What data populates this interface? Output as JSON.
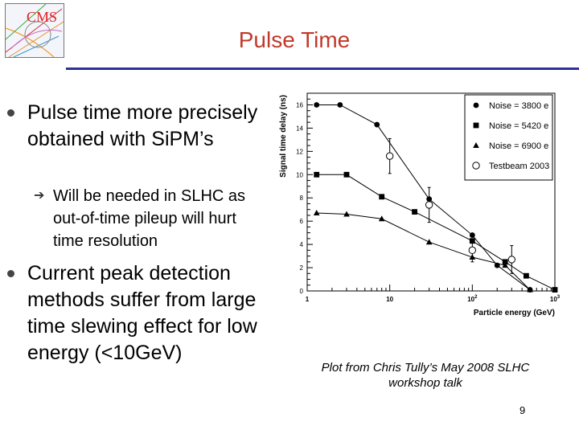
{
  "slide": {
    "title": "Pulse Time",
    "logo_text": "CMS",
    "bullets": [
      {
        "text": "Pulse time more precisely obtained with SiPM’s"
      },
      {
        "text": "Current peak detection methods suffer from large time slewing effect for low energy (<10GeV)"
      }
    ],
    "sub_bullet": "Will be needed in SLHC as out-of-time pileup will hurt time resolution",
    "caption": "Plot from Chris Tully’s May 2008 SLHC workshop talk",
    "page_number": "9"
  },
  "colors": {
    "title": "#c0392b",
    "rule": "#2f2f9a",
    "data": "#000000"
  },
  "chart_data": {
    "type": "line",
    "xscale": "log",
    "xlim": [
      1,
      1000
    ],
    "ylim": [
      0,
      17
    ],
    "xlabel": "Particle energy (GeV)",
    "ylabel": "Signal time delay (ns)",
    "y_ticks": [
      "0",
      "2",
      "4",
      "6",
      "8",
      "10",
      "12",
      "14",
      "16"
    ],
    "x_ticks": [
      {
        "base": "1",
        "exp": ""
      },
      {
        "base": "10",
        "exp": ""
      },
      {
        "base": "10",
        "exp": "2"
      },
      {
        "base": "10",
        "exp": "3"
      }
    ],
    "legend_position": "top-right",
    "series": [
      {
        "name": "Noise = 3800 e",
        "marker": "circle",
        "line": true,
        "points": [
          [
            1.3,
            16.0
          ],
          [
            2.5,
            16.0
          ],
          [
            7,
            14.3
          ],
          [
            30,
            7.9
          ],
          [
            100,
            4.8
          ],
          [
            200,
            2.2
          ],
          [
            500,
            0.1
          ]
        ]
      },
      {
        "name": "Noise = 5420 e",
        "marker": "square",
        "line": true,
        "points": [
          [
            1.3,
            10.0
          ],
          [
            3,
            10.0
          ],
          [
            8,
            8.1
          ],
          [
            20,
            6.8
          ],
          [
            100,
            4.3
          ],
          [
            250,
            2.5
          ],
          [
            450,
            1.3
          ],
          [
            1000,
            0.1
          ]
        ]
      },
      {
        "name": "Noise = 6900 e",
        "marker": "triangle",
        "line": true,
        "points": [
          [
            1.3,
            6.7
          ],
          [
            3,
            6.6
          ],
          [
            8,
            6.2
          ],
          [
            30,
            4.2
          ],
          [
            100,
            2.9
          ],
          [
            250,
            2.2
          ],
          [
            500,
            0.1
          ]
        ]
      },
      {
        "name": "Testbeam 2003",
        "marker": "open-circle",
        "line": false,
        "points": [
          [
            10,
            11.6
          ],
          [
            30,
            7.4
          ],
          [
            100,
            3.5
          ],
          [
            300,
            2.7
          ]
        ],
        "errors": [
          1.5,
          1.5,
          1.0,
          1.2
        ]
      }
    ]
  }
}
